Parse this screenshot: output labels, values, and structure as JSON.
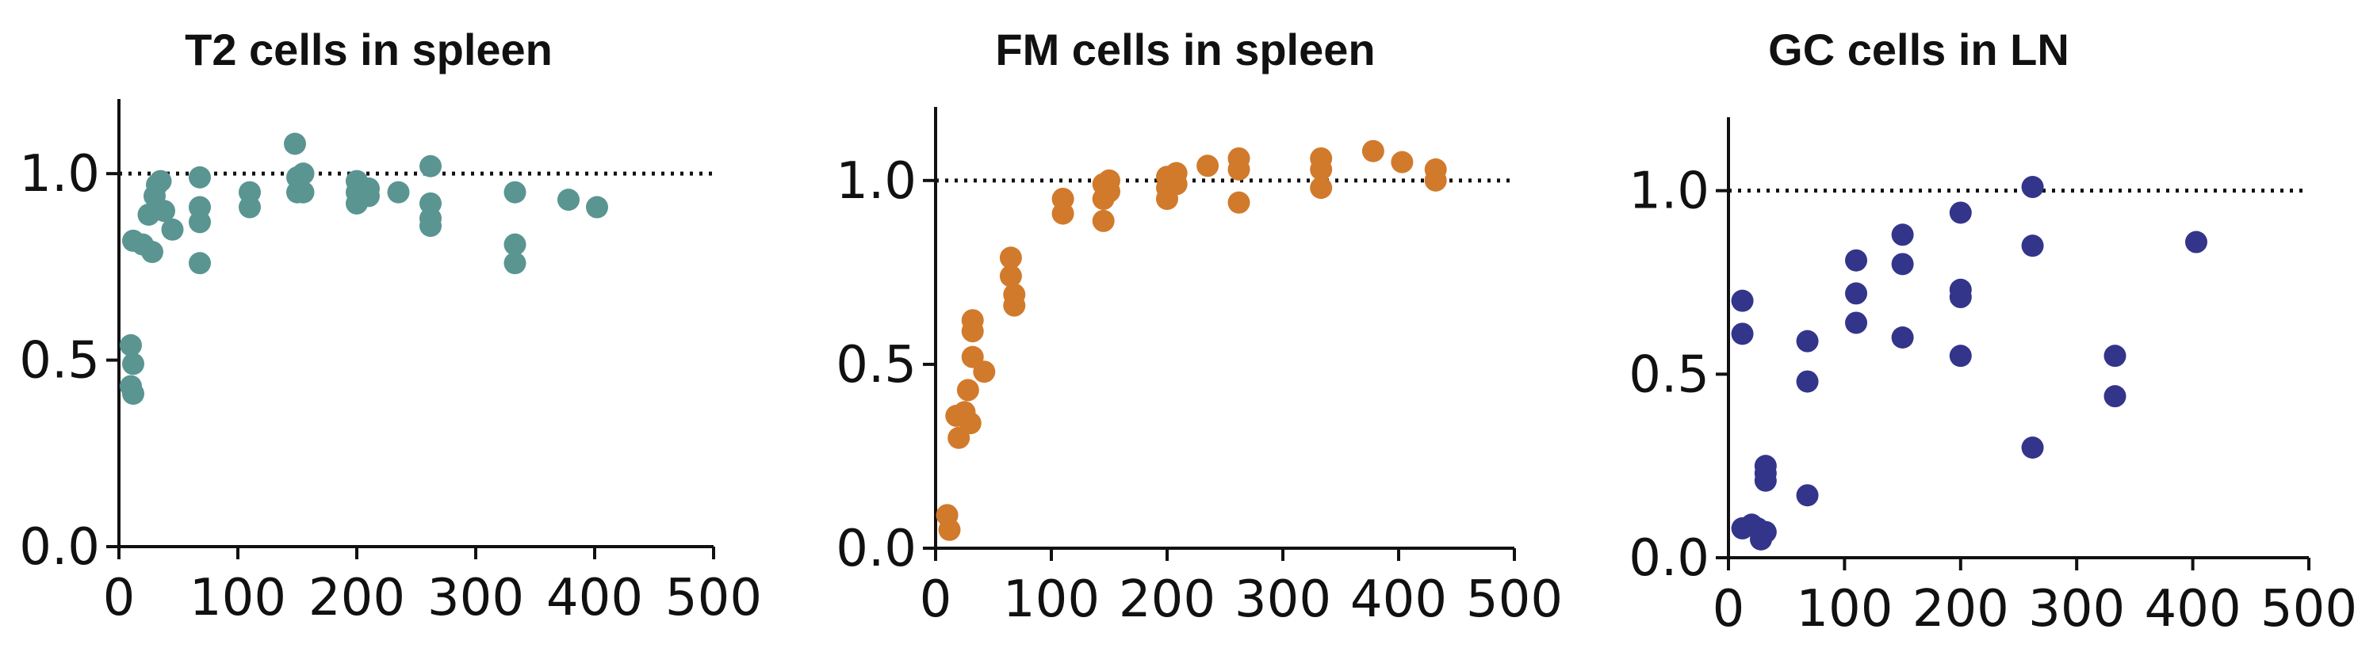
{
  "chart_data": [
    {
      "type": "scatter",
      "title": "T2 cells in spleen",
      "xlim": [
        0,
        500
      ],
      "ylim": [
        0,
        1.2
      ],
      "xticks": [
        "0",
        "100",
        "200",
        "300",
        "400",
        "500"
      ],
      "yticks": [
        "0.0",
        "0.5",
        "1.0"
      ],
      "reference_line_y": 1.0,
      "color": "#5a9592",
      "points": [
        {
          "x": 10,
          "y": 0.54
        },
        {
          "x": 12,
          "y": 0.49
        },
        {
          "x": 10,
          "y": 0.43
        },
        {
          "x": 12,
          "y": 0.41
        },
        {
          "x": 12,
          "y": 0.82
        },
        {
          "x": 20,
          "y": 0.81
        },
        {
          "x": 25,
          "y": 0.89
        },
        {
          "x": 28,
          "y": 0.79
        },
        {
          "x": 30,
          "y": 0.94
        },
        {
          "x": 32,
          "y": 0.97
        },
        {
          "x": 35,
          "y": 0.98
        },
        {
          "x": 38,
          "y": 0.9
        },
        {
          "x": 45,
          "y": 0.85
        },
        {
          "x": 68,
          "y": 0.99
        },
        {
          "x": 68,
          "y": 0.91
        },
        {
          "x": 68,
          "y": 0.87
        },
        {
          "x": 68,
          "y": 0.76
        },
        {
          "x": 110,
          "y": 0.95
        },
        {
          "x": 110,
          "y": 0.91
        },
        {
          "x": 148,
          "y": 1.08
        },
        {
          "x": 150,
          "y": 0.99
        },
        {
          "x": 150,
          "y": 0.95
        },
        {
          "x": 155,
          "y": 1.0
        },
        {
          "x": 155,
          "y": 0.95
        },
        {
          "x": 200,
          "y": 0.98
        },
        {
          "x": 200,
          "y": 0.95
        },
        {
          "x": 200,
          "y": 0.92
        },
        {
          "x": 210,
          "y": 0.96
        },
        {
          "x": 210,
          "y": 0.94
        },
        {
          "x": 235,
          "y": 0.95
        },
        {
          "x": 262,
          "y": 1.02
        },
        {
          "x": 262,
          "y": 0.92
        },
        {
          "x": 262,
          "y": 0.88
        },
        {
          "x": 262,
          "y": 0.86
        },
        {
          "x": 333,
          "y": 0.95
        },
        {
          "x": 333,
          "y": 0.81
        },
        {
          "x": 333,
          "y": 0.76
        },
        {
          "x": 378,
          "y": 0.93
        },
        {
          "x": 402,
          "y": 0.91
        }
      ]
    },
    {
      "type": "scatter",
      "title": "FM cells in spleen",
      "xlim": [
        0,
        500
      ],
      "ylim": [
        0,
        1.2
      ],
      "xticks": [
        "0",
        "100",
        "200",
        "300",
        "400",
        "500"
      ],
      "yticks": [
        "0.0",
        "0.5",
        "1.0"
      ],
      "reference_line_y": 1.0,
      "color": "#d17a2c",
      "points": [
        {
          "x": 10,
          "y": 0.09
        },
        {
          "x": 12,
          "y": 0.05
        },
        {
          "x": 18,
          "y": 0.36
        },
        {
          "x": 20,
          "y": 0.3
        },
        {
          "x": 25,
          "y": 0.37
        },
        {
          "x": 28,
          "y": 0.43
        },
        {
          "x": 30,
          "y": 0.34
        },
        {
          "x": 32,
          "y": 0.52
        },
        {
          "x": 32,
          "y": 0.59
        },
        {
          "x": 32,
          "y": 0.62
        },
        {
          "x": 42,
          "y": 0.48
        },
        {
          "x": 65,
          "y": 0.79
        },
        {
          "x": 65,
          "y": 0.74
        },
        {
          "x": 68,
          "y": 0.69
        },
        {
          "x": 68,
          "y": 0.66
        },
        {
          "x": 110,
          "y": 0.95
        },
        {
          "x": 110,
          "y": 0.91
        },
        {
          "x": 145,
          "y": 0.99
        },
        {
          "x": 145,
          "y": 0.95
        },
        {
          "x": 145,
          "y": 0.89
        },
        {
          "x": 150,
          "y": 1.0
        },
        {
          "x": 150,
          "y": 0.97
        },
        {
          "x": 200,
          "y": 1.01
        },
        {
          "x": 200,
          "y": 0.98
        },
        {
          "x": 200,
          "y": 0.95
        },
        {
          "x": 208,
          "y": 1.02
        },
        {
          "x": 208,
          "y": 0.99
        },
        {
          "x": 235,
          "y": 1.04
        },
        {
          "x": 262,
          "y": 1.06
        },
        {
          "x": 262,
          "y": 1.03
        },
        {
          "x": 262,
          "y": 0.94
        },
        {
          "x": 333,
          "y": 1.06
        },
        {
          "x": 333,
          "y": 1.03
        },
        {
          "x": 333,
          "y": 0.98
        },
        {
          "x": 378,
          "y": 1.08
        },
        {
          "x": 403,
          "y": 1.05
        },
        {
          "x": 432,
          "y": 1.03
        },
        {
          "x": 432,
          "y": 1.0
        }
      ]
    },
    {
      "type": "scatter",
      "title": "GC cells in LN",
      "xlim": [
        0,
        500
      ],
      "ylim": [
        0,
        1.2
      ],
      "xticks": [
        "0",
        "100",
        "200",
        "300",
        "400",
        "500"
      ],
      "yticks": [
        "0.0",
        "0.5",
        "1.0"
      ],
      "reference_line_y": 1.0,
      "color": "#33358a",
      "points": [
        {
          "x": 12,
          "y": 0.7
        },
        {
          "x": 12,
          "y": 0.61
        },
        {
          "x": 12,
          "y": 0.08
        },
        {
          "x": 20,
          "y": 0.09
        },
        {
          "x": 25,
          "y": 0.08
        },
        {
          "x": 28,
          "y": 0.05
        },
        {
          "x": 32,
          "y": 0.25
        },
        {
          "x": 32,
          "y": 0.23
        },
        {
          "x": 32,
          "y": 0.21
        },
        {
          "x": 32,
          "y": 0.07
        },
        {
          "x": 68,
          "y": 0.59
        },
        {
          "x": 68,
          "y": 0.48
        },
        {
          "x": 68,
          "y": 0.17
        },
        {
          "x": 110,
          "y": 0.81
        },
        {
          "x": 110,
          "y": 0.72
        },
        {
          "x": 110,
          "y": 0.64
        },
        {
          "x": 150,
          "y": 0.88
        },
        {
          "x": 150,
          "y": 0.8
        },
        {
          "x": 150,
          "y": 0.6
        },
        {
          "x": 200,
          "y": 0.94
        },
        {
          "x": 200,
          "y": 0.73
        },
        {
          "x": 200,
          "y": 0.71
        },
        {
          "x": 200,
          "y": 0.55
        },
        {
          "x": 262,
          "y": 1.01
        },
        {
          "x": 262,
          "y": 0.85
        },
        {
          "x": 262,
          "y": 0.3
        },
        {
          "x": 333,
          "y": 0.55
        },
        {
          "x": 333,
          "y": 0.44
        },
        {
          "x": 403,
          "y": 0.86
        }
      ]
    }
  ]
}
